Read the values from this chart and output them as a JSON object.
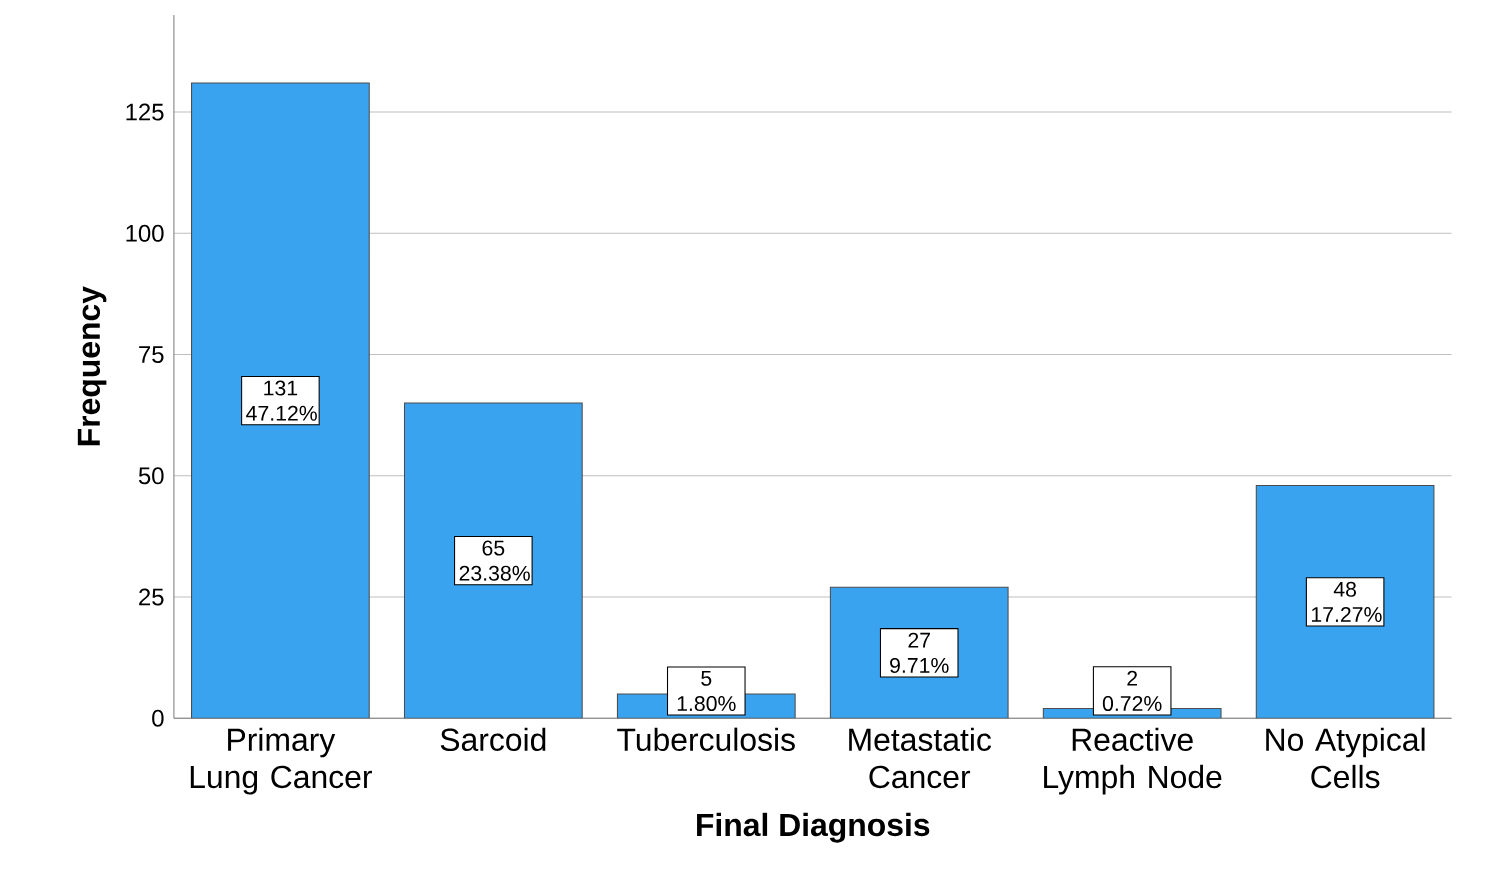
{
  "chart_data": {
    "type": "bar",
    "xlabel": "Final Diagnosis",
    "ylabel": "Frequency",
    "categories": [
      "Primary Lung Cancer",
      "Sarcoid",
      "Tuberculosis",
      "Metastatic Cancer",
      "Reactive Lymph Node",
      "No Atypical Cells"
    ],
    "values": [
      131,
      65,
      5,
      27,
      2,
      48
    ],
    "value_labels": [
      "131 47.12%",
      "65 23.38%",
      "5 1.80%",
      "27 9.71%",
      "2 0.72%",
      "48 17.27%"
    ],
    "color": "#3aa3f0",
    "ylim": [
      0,
      145
    ],
    "yticks": [
      0,
      25,
      50,
      75,
      100,
      125
    ],
    "grid": "y"
  }
}
